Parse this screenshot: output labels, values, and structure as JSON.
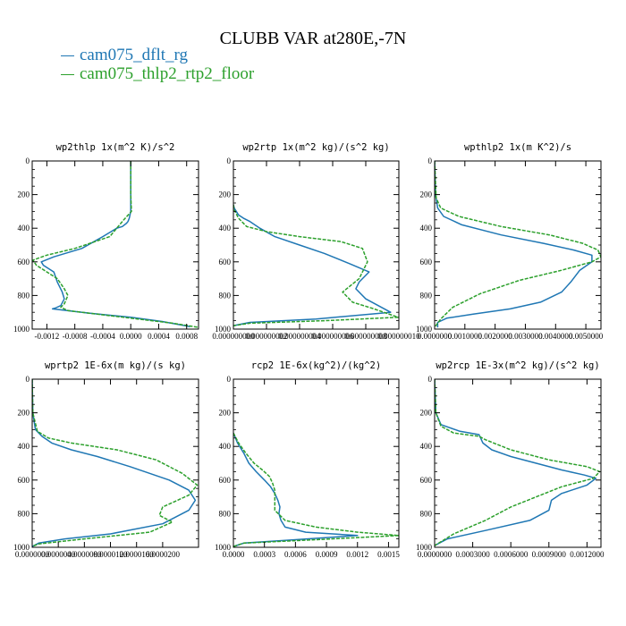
{
  "page": {
    "title": "CLUBB VAR at280E,-7N"
  },
  "legend": [
    {
      "label": "cam075_dflt_rg",
      "color": "#1f77b4"
    },
    {
      "label": "cam075_thlp2_rtp2_floor",
      "color": "#2ca02c"
    }
  ],
  "chart_data": [
    {
      "type": "line",
      "title": "wp2thlp  1x(m^2 K)/s^2",
      "xlim": [
        -0.00141,
        0.00097
      ],
      "ylim": [
        1000,
        0
      ],
      "x_ticks": [
        -0.0012,
        -0.0008,
        -0.0004,
        0,
        0.0004,
        0.0008
      ],
      "x_tick_labels": [
        "-0.0012",
        "-0.0008",
        "-0.0004",
        "0.0000",
        "0.0004",
        "0.0008"
      ],
      "y_ticks": [
        0,
        200,
        400,
        600,
        800,
        1000
      ],
      "y_tick_labels": [
        "0",
        "200",
        "400",
        "600",
        "800",
        "1000"
      ],
      "series": [
        {
          "name": "cam075_dflt_rg",
          "color": "#1f77b4",
          "style": "solid",
          "x": [
            0,
            0,
            0,
            -2e-05,
            -4e-05,
            -6e-05,
            -0.00012,
            -0.0002,
            -0.0004,
            -0.0007,
            -0.0011,
            -0.00128,
            -0.00125,
            -0.0011,
            -0.00105,
            -0.00098,
            -0.00095,
            -0.001,
            -0.00108,
            -0.00112,
            -0.0006,
            0,
            0.00045,
            0.00085
          ],
          "y": [
            0,
            200,
            300,
            340,
            360,
            370,
            390,
            400,
            450,
            520,
            570,
            600,
            620,
            660,
            720,
            780,
            820,
            860,
            875,
            880,
            905,
            930,
            955,
            985
          ]
        },
        {
          "name": "cam075_thlp2_rtp2_floor",
          "color": "#2ca02c",
          "style": "dashed",
          "x": [
            0,
            0,
            1e-05,
            -0.0001,
            -0.0003,
            -0.0008,
            -0.0012,
            -0.0014,
            -0.00135,
            -0.0012,
            -0.00105,
            -0.00095,
            -0.0009,
            -0.00095,
            -0.001,
            -0.0009,
            -0.0005,
            0.0001,
            0.0006,
            0.00097
          ],
          "y": [
            0,
            200,
            300,
            350,
            450,
            520,
            560,
            590,
            620,
            660,
            700,
            760,
            800,
            850,
            870,
            890,
            910,
            940,
            965,
            990
          ]
        }
      ]
    },
    {
      "type": "line",
      "title": "wp2rtp  1x(m^2 kg)/(s^2 kg)",
      "xlim": [
        0,
        1e-08
      ],
      "ylim": [
        1000,
        0
      ],
      "x_ticks": [
        0,
        2e-09,
        4e-09,
        6e-09,
        8e-09,
        1e-08
      ],
      "x_tick_labels": [
        "0.000000000",
        "0.000000002",
        "0.000000004",
        "0.000000006",
        "0.000000008",
        "0.000000010"
      ],
      "y_ticks": [
        0,
        200,
        400,
        600,
        800,
        1000
      ],
      "y_tick_labels": [
        "0",
        "200",
        "400",
        "600",
        "800",
        "1000"
      ],
      "series": [
        {
          "name": "cam075_dflt_rg",
          "color": "#1f77b4",
          "style": "solid",
          "x": [
            0,
            5e-11,
            3e-10,
            6e-10,
            1e-09,
            1.6e-09,
            2.5e-09,
            4e-09,
            5.5e-09,
            7e-09,
            8.2e-09,
            7.6e-09,
            7.4e-09,
            8e-09,
            9.5e-09,
            5e-09,
            1e-09,
            0
          ],
          "y": [
            260,
            280,
            320,
            340,
            360,
            400,
            450,
            500,
            550,
            610,
            660,
            720,
            760,
            820,
            900,
            940,
            960,
            980
          ]
        },
        {
          "name": "cam075_thlp2_rtp2_floor",
          "color": "#2ca02c",
          "style": "dashed",
          "x": [
            0,
            5e-11,
            3e-10,
            8e-10,
            2e-09,
            4e-09,
            6.5e-09,
            7.8e-09,
            8.1e-09,
            7.6e-09,
            6.6e-09,
            7.2e-09,
            8.5e-09,
            9.95e-09,
            5.5e-09,
            1e-09,
            0
          ],
          "y": [
            260,
            290,
            340,
            390,
            420,
            450,
            480,
            520,
            600,
            700,
            780,
            840,
            880,
            930,
            950,
            965,
            980
          ]
        }
      ]
    },
    {
      "type": "line",
      "title": "wpthlp2  1x(m K^2)/s",
      "xlim": [
        0,
        0.0055
      ],
      "ylim": [
        1000,
        0
      ],
      "x_ticks": [
        0,
        0.001,
        0.002,
        0.003,
        0.004,
        0.005
      ],
      "x_tick_labels": [
        "0.0000000",
        "0.0010000",
        "0.0020000",
        "0.0030000",
        "0.0040000",
        "0.0050000"
      ],
      "y_ticks": [
        0,
        200,
        400,
        600,
        800,
        1000
      ],
      "y_tick_labels": [
        "0",
        "200",
        "400",
        "600",
        "800",
        "1000"
      ],
      "series": [
        {
          "name": "cam075_dflt_rg",
          "color": "#1f77b4",
          "style": "solid",
          "x": [
            0,
            3e-05,
            0.0001,
            0.0003,
            0.0009,
            0.0022,
            0.0036,
            0.0046,
            0.0052,
            0.0052,
            0.0048,
            0.0045,
            0.0042,
            0.0035,
            0.0025,
            0.0013,
            0.0004,
            0.0001,
            0.0001
          ],
          "y": [
            0,
            200,
            280,
            330,
            380,
            440,
            490,
            530,
            560,
            600,
            650,
            720,
            780,
            840,
            880,
            910,
            935,
            960,
            990
          ]
        },
        {
          "name": "cam075_thlp2_rtp2_floor",
          "color": "#2ca02c",
          "style": "dashed",
          "x": [
            0,
            5e-05,
            0.0002,
            0.0008,
            0.0022,
            0.0038,
            0.0049,
            0.0054,
            0.0055,
            0.0052,
            0.0042,
            0.0028,
            0.0015,
            0.0006,
            0.0002,
            0
          ],
          "y": [
            0,
            220,
            280,
            330,
            390,
            440,
            490,
            530,
            570,
            600,
            650,
            710,
            790,
            870,
            940,
            990
          ]
        }
      ]
    },
    {
      "type": "line",
      "title": "wprtp2  1E-6x(m kg)/(s kg)",
      "xlim": [
        0,
        2.55e-05
      ],
      "ylim": [
        1000,
        0
      ],
      "x_ticks": [
        0,
        4e-06,
        8e-06,
        1.2e-05,
        1.6e-05,
        2e-05
      ],
      "x_tick_labels": [
        "0.0000000",
        "0.0000040",
        "0.0000080",
        "0.0000120",
        "0.0000160",
        "0.0000200"
      ],
      "y_ticks": [
        0,
        200,
        400,
        600,
        800,
        1000
      ],
      "y_tick_labels": [
        "0",
        "200",
        "400",
        "600",
        "800",
        "1000"
      ],
      "series": [
        {
          "name": "cam075_dflt_rg",
          "color": "#1f77b4",
          "style": "solid",
          "x": [
            0,
            1e-07,
            5e-07,
            1.5e-06,
            3e-06,
            6e-06,
            1e-05,
            1.5e-05,
            2.1e-05,
            2.4e-05,
            2.5e-05,
            2.4e-05,
            2e-05,
            1.2e-05,
            5e-06,
            1e-06,
            0
          ],
          "y": [
            0,
            200,
            300,
            340,
            380,
            420,
            460,
            520,
            600,
            660,
            720,
            780,
            860,
            920,
            950,
            975,
            995
          ]
        },
        {
          "name": "cam075_thlp2_rtp2_floor",
          "color": "#2ca02c",
          "style": "dashed",
          "x": [
            0,
            1e-07,
            8e-07,
            2.5e-06,
            6e-06,
            1.3e-05,
            1.9e-05,
            2.3e-05,
            2.53e-05,
            2.4e-05,
            2e-05,
            1.95e-05,
            2.15e-05,
            1.8e-05,
            8e-06,
            1e-06,
            0
          ],
          "y": [
            0,
            200,
            310,
            350,
            380,
            420,
            480,
            560,
            630,
            690,
            760,
            810,
            850,
            910,
            950,
            980,
            995
          ]
        }
      ]
    },
    {
      "type": "line",
      "title": "rcp2  1E-6x(kg^2)/(kg^2)",
      "xlim": [
        0,
        0.0016
      ],
      "ylim": [
        1000,
        0
      ],
      "x_ticks": [
        0,
        0.0003,
        0.0006,
        0.0009,
        0.0012,
        0.0015
      ],
      "x_tick_labels": [
        "0.0000",
        "0.0003",
        "0.0006",
        "0.0009",
        "0.0012",
        "0.0015"
      ],
      "y_ticks": [
        0,
        200,
        400,
        600,
        800,
        1000
      ],
      "y_tick_labels": [
        "0",
        "200",
        "400",
        "600",
        "800",
        "1000"
      ],
      "series": [
        {
          "name": "cam075_dflt_rg",
          "color": "#1f77b4",
          "style": "solid",
          "x": [
            0,
            4e-05,
            0.0001,
            0.00015,
            0.00022,
            0.0003,
            0.00036,
            0.0004,
            0.00043,
            0.00045,
            0.00044,
            0.00046,
            0.0005,
            0.0007,
            0.0012,
            0.0006,
            0.0001,
            0
          ],
          "y": [
            320,
            380,
            440,
            500,
            550,
            600,
            640,
            680,
            720,
            760,
            800,
            840,
            880,
            910,
            930,
            955,
            975,
            995
          ]
        },
        {
          "name": "cam075_thlp2_rtp2_floor",
          "color": "#2ca02c",
          "style": "dashed",
          "x": [
            0,
            5e-05,
            0.00012,
            0.0002,
            0.00028,
            0.00035,
            0.00038,
            0.0004,
            0.0004,
            0.0004,
            0.0005,
            0.0008,
            0.0012,
            0.0016,
            0.0008,
            0.0001,
            0
          ],
          "y": [
            320,
            380,
            440,
            500,
            540,
            580,
            620,
            660,
            720,
            780,
            840,
            880,
            910,
            930,
            955,
            975,
            995
          ]
        }
      ]
    },
    {
      "type": "line",
      "title": "wp2rcp  1E-3x(m^2 kg)/(s^2 kg)",
      "xlim": [
        0,
        0.00131
      ],
      "ylim": [
        1000,
        0
      ],
      "x_ticks": [
        0,
        0.0003,
        0.0006,
        0.0009,
        0.0012
      ],
      "x_tick_labels": [
        "0.0000000",
        "0.0003000",
        "0.0006000",
        "0.0009000",
        "0.0012000"
      ],
      "y_ticks": [
        0,
        200,
        400,
        600,
        800,
        1000
      ],
      "y_tick_labels": [
        "0",
        "200",
        "400",
        "600",
        "800",
        "1000"
      ],
      "series": [
        {
          "name": "cam075_dflt_rg",
          "color": "#1f77b4",
          "style": "solid",
          "x": [
            0,
            1e-05,
            5e-05,
            0.0002,
            0.00035,
            0.00038,
            0.00045,
            0.0006,
            0.0008,
            0.001,
            0.00118,
            0.00127,
            0.0012,
            0.001,
            0.00092,
            0.0009,
            0.00075,
            0.0004,
            0.0001,
            0
          ],
          "y": [
            0,
            200,
            270,
            310,
            330,
            380,
            420,
            460,
            500,
            540,
            570,
            590,
            630,
            680,
            720,
            780,
            840,
            900,
            950,
            990
          ]
        },
        {
          "name": "cam075_thlp2_rtp2_floor",
          "color": "#2ca02c",
          "style": "dashed",
          "x": [
            0,
            1e-05,
            5e-05,
            0.00015,
            0.00035,
            0.0004,
            0.0006,
            0.0009,
            0.0012,
            0.0013,
            0.00125,
            0.001,
            0.0008,
            0.0006,
            0.0004,
            0.00015,
            0
          ],
          "y": [
            0,
            200,
            280,
            320,
            340,
            360,
            420,
            480,
            520,
            550,
            590,
            640,
            700,
            760,
            840,
            920,
            990
          ]
        }
      ]
    }
  ]
}
